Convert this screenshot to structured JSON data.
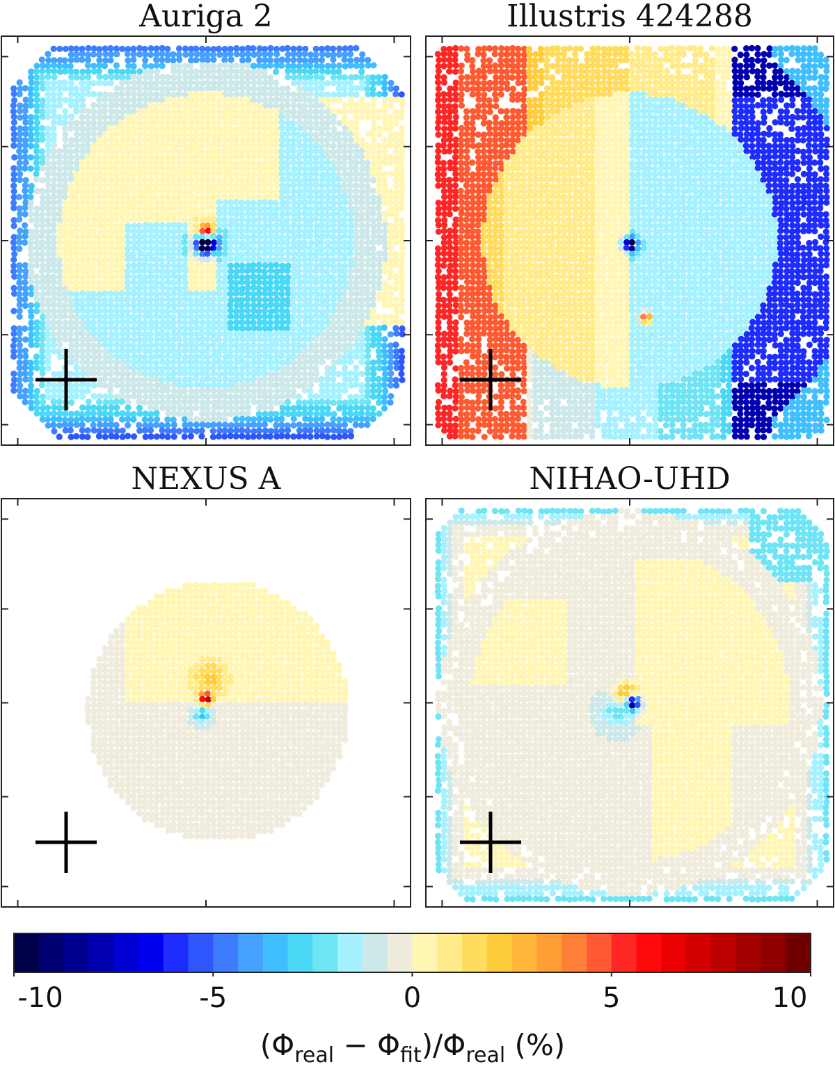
{
  "chart_data": {
    "type": "heatmap",
    "panels": [
      {
        "title": "Auriga 2",
        "pattern": "auriga"
      },
      {
        "title": "Illustris 424288",
        "pattern": "illustris"
      },
      {
        "title": "NEXUS A",
        "pattern": "nexus"
      },
      {
        "title": "NIHAO-UHD",
        "pattern": "nihao"
      }
    ],
    "colorbar": {
      "min": -10,
      "max": 10,
      "ticks": [
        -10,
        -5,
        0,
        5,
        10
      ],
      "tick_labels": [
        "-10",
        "-5",
        "0",
        "5",
        "10"
      ],
      "label_parts": {
        "open": "(Φ",
        "sub1": "real",
        "mid": " − Φ",
        "sub2": "fit",
        "mid2": ")/Φ",
        "sub3": "real",
        "close": " (%)"
      },
      "colors": [
        "#00004a",
        "#000070",
        "#00008f",
        "#0000b0",
        "#0000d2",
        "#0000f0",
        "#1e2cff",
        "#2f55ff",
        "#3d7bff",
        "#45a0ff",
        "#3fbfff",
        "#4ad8f6",
        "#6ee4f5",
        "#a5f1ff",
        "#cde8e8",
        "#efecdd",
        "#fff6b4",
        "#ffeb8a",
        "#ffdc5e",
        "#ffcc3c",
        "#ffb63a",
        "#ff9e34",
        "#ff7f36",
        "#ff5a32",
        "#ff2626",
        "#ff0a0a",
        "#ea0000",
        "#d20000",
        "#bc0000",
        "#a30000",
        "#8e0000",
        "#700000"
      ]
    }
  }
}
